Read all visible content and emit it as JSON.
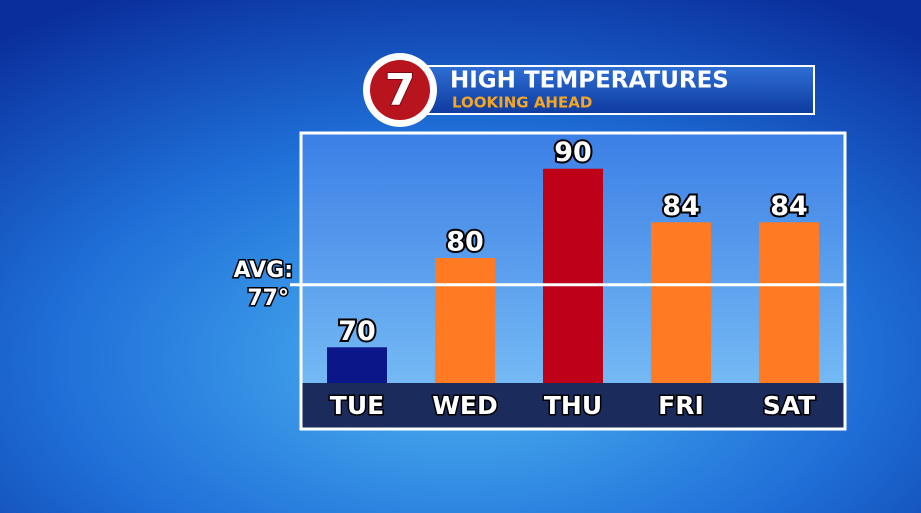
{
  "logo": "7",
  "chart_data": {
    "type": "bar",
    "title": "HIGH TEMPERATURES",
    "subtitle": "LOOKING AHEAD",
    "categories": [
      "TUE",
      "WED",
      "THU",
      "FRI",
      "SAT"
    ],
    "values": [
      70,
      80,
      90,
      84,
      84
    ],
    "colors": [
      "#0b1789",
      "#ff7a22",
      "#be0019",
      "#ff7a22",
      "#ff7a22"
    ],
    "ylim": [
      66,
      94
    ],
    "average": {
      "name": "AVG:",
      "value": 77,
      "label": "77°"
    }
  }
}
